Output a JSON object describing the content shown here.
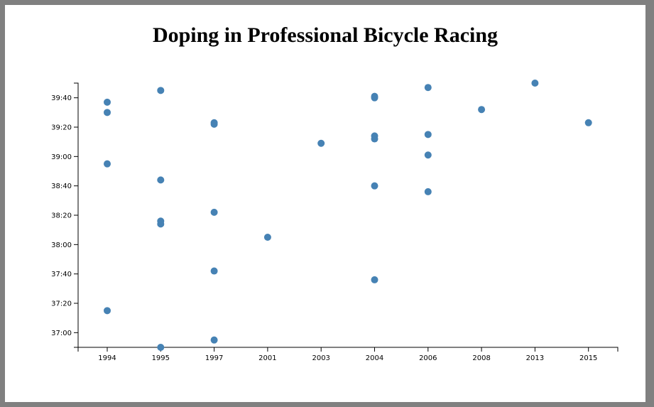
{
  "chart_data": {
    "type": "scatter",
    "title": "Doping in Professional Bicycle Racing",
    "xlabel": "",
    "ylabel": "",
    "x_categories": [
      "1994",
      "1995",
      "1997",
      "2001",
      "2003",
      "2004",
      "2006",
      "2008",
      "2013",
      "2015"
    ],
    "y_ticks": [
      "37:00",
      "37:20",
      "37:40",
      "38:00",
      "38:20",
      "38:40",
      "39:00",
      "39:20",
      "39:40"
    ],
    "ylim_seconds": [
      2210,
      2390
    ],
    "dot_color": "#4682b4",
    "points": [
      {
        "x": "1994",
        "time": "39:37"
      },
      {
        "x": "1994",
        "time": "39:30"
      },
      {
        "x": "1994",
        "time": "38:55"
      },
      {
        "x": "1994",
        "time": "37:15"
      },
      {
        "x": "1995",
        "time": "39:45"
      },
      {
        "x": "1995",
        "time": "38:44"
      },
      {
        "x": "1995",
        "time": "38:16"
      },
      {
        "x": "1995",
        "time": "38:14"
      },
      {
        "x": "1995",
        "time": "36:50"
      },
      {
        "x": "1997",
        "time": "39:23"
      },
      {
        "x": "1997",
        "time": "39:22"
      },
      {
        "x": "1997",
        "time": "38:22"
      },
      {
        "x": "1997",
        "time": "37:42"
      },
      {
        "x": "1997",
        "time": "36:55"
      },
      {
        "x": "2001",
        "time": "38:05"
      },
      {
        "x": "2003",
        "time": "39:09"
      },
      {
        "x": "2004",
        "time": "39:41"
      },
      {
        "x": "2004",
        "time": "39:40"
      },
      {
        "x": "2004",
        "time": "39:14"
      },
      {
        "x": "2004",
        "time": "39:12"
      },
      {
        "x": "2004",
        "time": "38:40"
      },
      {
        "x": "2004",
        "time": "37:36"
      },
      {
        "x": "2006",
        "time": "39:47"
      },
      {
        "x": "2006",
        "time": "39:15"
      },
      {
        "x": "2006",
        "time": "39:01"
      },
      {
        "x": "2006",
        "time": "38:36"
      },
      {
        "x": "2008",
        "time": "39:32"
      },
      {
        "x": "2013",
        "time": "39:50"
      },
      {
        "x": "2015",
        "time": "39:23"
      }
    ]
  }
}
